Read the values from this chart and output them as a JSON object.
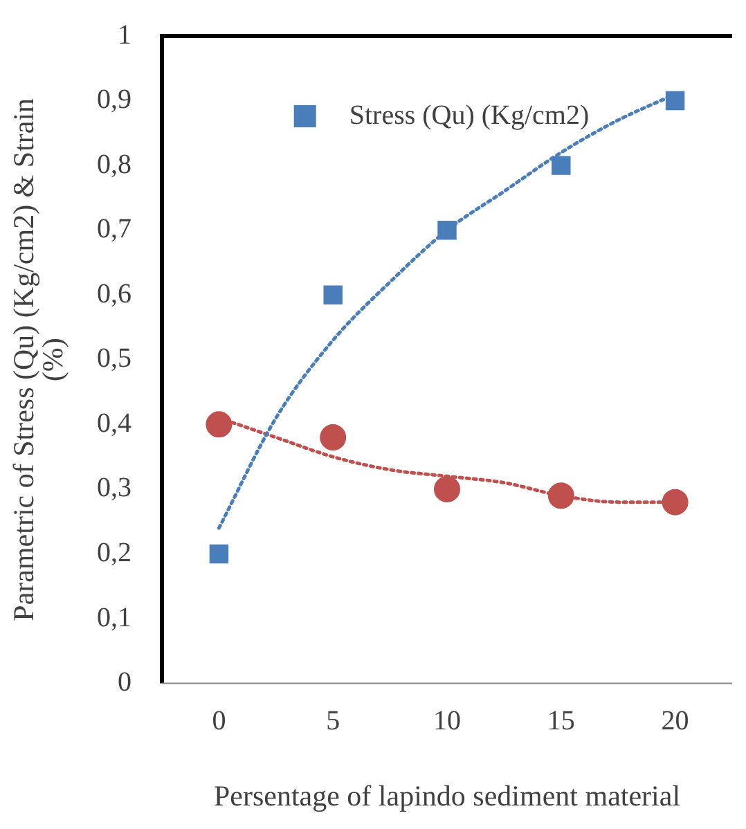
{
  "chart_data": {
    "type": "scatter",
    "xlabel": "Persentage of lapindo sediment material",
    "ylabel": "Parametric of Stress (Qu) (Kg/cm2) & Strain (%)",
    "x": [
      0,
      5,
      10,
      15,
      20
    ],
    "series": [
      {
        "name": "Stress (Qu) (Kg/cm2)",
        "color": "#4a7ebb",
        "marker": "square",
        "values": [
          0.2,
          0.6,
          0.7,
          0.8,
          0.9
        ]
      },
      {
        "color": "#c0504d",
        "marker": "circle",
        "values": [
          0.4,
          0.38,
          0.3,
          0.29,
          0.28
        ]
      },
      {
        "type": "line",
        "color": "#4a7ebb",
        "line_style": "dotted",
        "marker": "none",
        "x": [
          0,
          2.5,
          5,
          7.5,
          10,
          12.5,
          15,
          17.5,
          20
        ],
        "values": [
          0.24,
          0.41,
          0.53,
          0.62,
          0.7,
          0.76,
          0.82,
          0.87,
          0.91
        ]
      },
      {
        "type": "line",
        "color": "#c0504d",
        "line_style": "dotted",
        "marker": "none",
        "x": [
          0,
          2.5,
          5,
          7.5,
          10,
          12.5,
          15,
          17.5,
          20
        ],
        "values": [
          0.41,
          0.38,
          0.35,
          0.33,
          0.32,
          0.31,
          0.29,
          0.28,
          0.28
        ]
      }
    ],
    "xlim": [
      -2.5,
      22.5
    ],
    "xticks": [
      0,
      5,
      10,
      15,
      20
    ],
    "ylim": [
      0,
      1
    ],
    "yticks": [
      0,
      {
        "value": 0.1,
        "label": "0,1"
      },
      {
        "value": 0.2,
        "label": "0,2"
      },
      {
        "value": 0.3,
        "label": "0,3"
      },
      {
        "value": 0.4,
        "label": "0,4"
      },
      {
        "value": 0.5,
        "label": "0,5"
      },
      {
        "value": 0.6,
        "label": "0,6"
      },
      {
        "value": 0.7,
        "label": "0,7"
      },
      {
        "value": 0.8,
        "label": "0,8"
      },
      {
        "value": 0.9,
        "label": "0,9"
      },
      1
    ],
    "grid": false,
    "legend": "top"
  }
}
